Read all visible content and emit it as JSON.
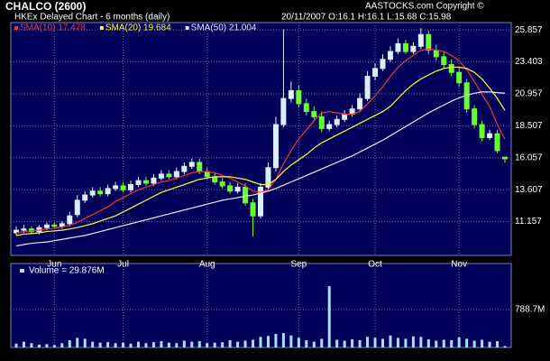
{
  "header": {
    "title": "CHALCO (2600)",
    "copyright": "AASTOCKS.com Copyright ©",
    "subtitle": "HKEx  Delayed Chart - 6 months (daily)",
    "quote": "20/11/2007   O:16.1   H:16.1   L:15.68   C:15.98"
  },
  "chart_data": [
    {
      "type": "candlestick",
      "categories": [
        null,
        null,
        null,
        null,
        null,
        "Jun",
        null,
        null,
        null,
        null,
        null,
        null,
        null,
        null,
        "Jul",
        null,
        null,
        null,
        null,
        null,
        null,
        null,
        null,
        null,
        null,
        "Aug",
        null,
        null,
        null,
        null,
        null,
        null,
        null,
        null,
        null,
        null,
        null,
        "Sep",
        null,
        null,
        null,
        null,
        null,
        null,
        null,
        null,
        null,
        "Oct",
        null,
        null,
        null,
        null,
        null,
        null,
        null,
        null,
        null,
        null,
        "Nov",
        null,
        null,
        null,
        null,
        null,
        null
      ],
      "open": [
        10.3,
        10.5,
        10.6,
        10.4,
        10.7,
        10.9,
        10.8,
        11.0,
        11.7,
        12.8,
        13.2,
        13.5,
        13.3,
        13.7,
        13.9,
        13.6,
        14.0,
        14.3,
        14.1,
        14.5,
        14.8,
        14.6,
        15.0,
        15.4,
        15.7,
        15.0,
        14.6,
        14.2,
        13.9,
        13.5,
        13.8,
        12.6,
        11.6,
        13.8,
        15.3,
        18.6,
        20.6,
        21.2,
        20.2,
        19.6,
        19.2,
        18.3,
        18.6,
        19.0,
        19.4,
        19.8,
        20.6,
        22.3,
        22.9,
        23.6,
        24.2,
        24.8,
        24.2,
        24.6,
        25.5,
        24.3,
        23.8,
        23.2,
        22.6,
        21.8,
        19.8,
        18.6,
        17.6,
        17.9,
        16.1
      ],
      "high": [
        10.8,
        10.9,
        10.8,
        10.9,
        11.1,
        11.1,
        11.2,
        11.9,
        13.2,
        13.5,
        13.8,
        13.8,
        14.0,
        14.2,
        14.2,
        14.3,
        14.6,
        14.6,
        14.8,
        15.1,
        15.1,
        15.3,
        15.7,
        16.0,
        16.0,
        15.3,
        14.9,
        14.5,
        14.2,
        14.1,
        14.1,
        12.9,
        14.1,
        15.7,
        19.2,
        25.9,
        21.9,
        21.6,
        20.6,
        20.0,
        19.6,
        18.9,
        19.3,
        19.7,
        20.1,
        21.0,
        22.7,
        23.3,
        24.0,
        24.6,
        25.2,
        25.1,
        24.9,
        26.0,
        25.8,
        24.7,
        24.2,
        23.6,
        23.0,
        22.1,
        20.1,
        18.9,
        18.2,
        18.2,
        16.1
      ],
      "low": [
        10.1,
        10.3,
        10.2,
        10.2,
        10.5,
        10.6,
        10.6,
        10.8,
        11.5,
        12.6,
        13.0,
        13.1,
        13.1,
        13.5,
        13.4,
        13.4,
        13.8,
        13.9,
        13.9,
        14.3,
        14.4,
        14.4,
        14.8,
        15.2,
        14.8,
        14.4,
        14.0,
        13.7,
        13.3,
        13.3,
        12.4,
        10.0,
        11.4,
        13.6,
        15.0,
        18.4,
        20.3,
        19.9,
        19.3,
        18.9,
        18.0,
        18.1,
        18.4,
        18.8,
        19.2,
        19.6,
        20.4,
        22.0,
        22.7,
        23.4,
        24.0,
        24.0,
        24.0,
        24.4,
        24.0,
        23.5,
        22.9,
        22.3,
        21.5,
        19.5,
        18.3,
        17.3,
        17.4,
        16.4,
        15.68
      ],
      "close": [
        10.5,
        10.6,
        10.4,
        10.7,
        10.9,
        10.8,
        11.0,
        11.6,
        12.8,
        13.2,
        13.5,
        13.3,
        13.7,
        13.9,
        13.6,
        14.0,
        14.3,
        14.1,
        14.5,
        14.8,
        14.6,
        15.0,
        15.4,
        15.7,
        15.0,
        14.6,
        14.2,
        13.9,
        13.5,
        13.8,
        12.6,
        11.6,
        13.8,
        15.3,
        18.6,
        20.6,
        21.2,
        20.2,
        19.6,
        19.2,
        18.3,
        18.6,
        19.0,
        19.4,
        19.8,
        20.6,
        22.3,
        22.9,
        23.6,
        24.2,
        24.8,
        24.2,
        24.6,
        25.5,
        24.3,
        23.8,
        23.2,
        22.6,
        21.8,
        19.8,
        18.6,
        17.6,
        17.9,
        16.6,
        15.98
      ],
      "up_color": "#d8f0ff",
      "down_color": "#66ff33",
      "series": [
        {
          "name": "SMA(10) 17.478",
          "color": "#ff3030",
          "values": [
            10.3,
            10.4,
            10.45,
            10.5,
            10.6,
            10.65,
            10.75,
            10.9,
            11.1,
            11.4,
            11.7,
            12.0,
            12.3,
            12.7,
            13.0,
            13.3,
            13.6,
            13.8,
            14.0,
            14.2,
            14.3,
            14.5,
            14.7,
            14.9,
            15.0,
            15.0,
            14.9,
            14.7,
            14.5,
            14.2,
            13.9,
            13.5,
            13.4,
            13.6,
            14.4,
            15.6,
            16.6,
            17.5,
            18.2,
            18.9,
            19.5,
            19.6,
            19.5,
            19.4,
            19.4,
            19.6,
            20.2,
            20.8,
            21.5,
            22.3,
            23.0,
            23.5,
            23.9,
            24.3,
            24.4,
            24.3,
            24.2,
            23.9,
            23.5,
            22.8,
            21.9,
            20.9,
            20.0,
            18.6,
            17.478
          ]
        },
        {
          "name": "SMA(20) 19.684",
          "color": "#ffff33",
          "values": [
            10.1,
            10.2,
            10.25,
            10.3,
            10.4,
            10.45,
            10.5,
            10.6,
            10.7,
            10.85,
            11.0,
            11.2,
            11.4,
            11.6,
            11.9,
            12.2,
            12.5,
            12.8,
            13.1,
            13.4,
            13.6,
            13.8,
            14.0,
            14.2,
            14.4,
            14.5,
            14.6,
            14.6,
            14.6,
            14.5,
            14.4,
            14.2,
            14.0,
            14.0,
            14.4,
            15.0,
            15.5,
            15.9,
            16.3,
            16.8,
            17.2,
            17.5,
            17.8,
            18.1,
            18.4,
            18.7,
            19.0,
            19.3,
            19.6,
            20.0,
            20.6,
            21.2,
            21.7,
            22.1,
            22.4,
            22.7,
            22.9,
            23.0,
            23.0,
            22.9,
            22.6,
            22.1,
            21.4,
            20.6,
            19.684
          ]
        },
        {
          "name": "SMA(50) 21.004",
          "color": "#e8e8ff",
          "values": [
            9.3,
            9.4,
            9.5,
            9.55,
            9.6,
            9.7,
            9.8,
            9.9,
            10.0,
            10.1,
            10.25,
            10.4,
            10.55,
            10.7,
            10.85,
            11.0,
            11.15,
            11.3,
            11.45,
            11.6,
            11.75,
            11.9,
            12.05,
            12.2,
            12.35,
            12.5,
            12.65,
            12.8,
            12.9,
            13.0,
            13.1,
            13.2,
            13.35,
            13.5,
            13.7,
            13.95,
            14.2,
            14.45,
            14.7,
            14.95,
            15.2,
            15.45,
            15.7,
            15.95,
            16.2,
            16.5,
            16.8,
            17.1,
            17.4,
            17.75,
            18.1,
            18.45,
            18.8,
            19.15,
            19.5,
            19.8,
            20.1,
            20.4,
            20.65,
            20.85,
            21.0,
            21.1,
            21.1,
            21.05,
            21.004
          ]
        }
      ],
      "ylim": [
        8.57,
        26.42
      ],
      "yticks": [
        11.157,
        13.607,
        16.057,
        18.507,
        20.957,
        23.403,
        25.857
      ],
      "grid": true
    },
    {
      "type": "bar",
      "title": "Volume = 29.876M",
      "color": "#a8e0ff",
      "values": [
        80,
        120,
        90,
        60,
        70,
        50,
        90,
        150,
        200,
        180,
        120,
        100,
        110,
        90,
        100,
        80,
        120,
        90,
        110,
        130,
        100,
        90,
        140,
        120,
        130,
        90,
        100,
        110,
        150,
        120,
        140,
        160,
        220,
        240,
        280,
        300,
        250,
        200,
        150,
        120,
        180,
        1275,
        160,
        140,
        170,
        150,
        220,
        200,
        180,
        250,
        200,
        180,
        230,
        220,
        170,
        140,
        160,
        150,
        210,
        180,
        140,
        160,
        120,
        130,
        29.876
      ],
      "ylim": [
        0,
        1746
      ],
      "yticks": [
        {
          "value": 788.7,
          "label": "788.7M"
        }
      ],
      "grid": true
    }
  ]
}
